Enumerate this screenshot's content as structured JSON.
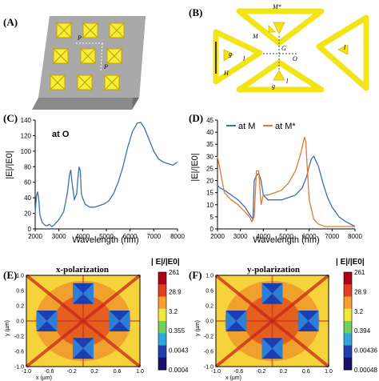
{
  "panels": {
    "A": "(A)",
    "B": "(B)",
    "C": "(C)",
    "D": "(D)",
    "E": "(E)",
    "F": "(F)"
  },
  "schematic_a": {
    "labels": [
      "P",
      "P"
    ]
  },
  "schematic_b": {
    "labels": [
      "M*",
      "M",
      "g",
      "l",
      "H",
      "G",
      "O",
      "l",
      "g",
      "l"
    ]
  },
  "chart_data": [
    {
      "type": "line",
      "ylabel": "|E|/|E0|",
      "xlabel": "Wavelength (nm)",
      "annotation": "at O",
      "xlim": [
        2000,
        8000
      ],
      "ylim": [
        0,
        140
      ],
      "xticks": [
        2000,
        3000,
        4000,
        5000,
        6000,
        7000,
        8000
      ],
      "yticks": [
        0,
        20,
        40,
        60,
        80,
        100,
        120,
        140
      ],
      "series": [
        {
          "color": "#3a6fb5",
          "x": [
            2000,
            2050,
            2100,
            2150,
            2200,
            2300,
            2400,
            2500,
            2600,
            2700,
            2800,
            3000,
            3200,
            3350,
            3450,
            3500,
            3550,
            3650,
            3750,
            3800,
            3850,
            3900,
            3950,
            4000,
            4100,
            4300,
            4500,
            4700,
            4900,
            5100,
            5300,
            5500,
            5700,
            5900,
            6100,
            6300,
            6450,
            6600,
            6800,
            7000,
            7200,
            7400,
            7600,
            7800,
            8000
          ],
          "y": [
            20,
            42,
            48,
            38,
            18,
            8,
            5,
            4,
            6,
            3,
            5,
            12,
            22,
            45,
            70,
            76,
            60,
            38,
            45,
            65,
            80,
            75,
            45,
            40,
            32,
            28,
            28,
            30,
            32,
            36,
            45,
            60,
            80,
            105,
            125,
            136,
            137,
            130,
            115,
            100,
            90,
            86,
            84,
            82,
            86
          ]
        }
      ]
    },
    {
      "type": "line",
      "ylabel": "|E|/|E0|",
      "xlabel": "Wavelength (nm)",
      "xlim": [
        2000,
        8000
      ],
      "ylim": [
        0,
        45
      ],
      "xticks": [
        2000,
        3000,
        4000,
        5000,
        6000,
        7000,
        8000
      ],
      "yticks": [
        0,
        5,
        10,
        15,
        20,
        25,
        30,
        35,
        40,
        45
      ],
      "legend": "top",
      "series": [
        {
          "name": "at M",
          "color": "#3a6fb5",
          "x": [
            2000,
            2100,
            2300,
            2600,
            2900,
            3200,
            3400,
            3550,
            3600,
            3700,
            3800,
            3900,
            4000,
            4200,
            4500,
            4800,
            5100,
            5400,
            5700,
            5900,
            6000,
            6100,
            6200,
            6400,
            6600,
            6800,
            7000,
            7300,
            7600,
            7800,
            8000
          ],
          "y": [
            18,
            17,
            16,
            14,
            12,
            9,
            6,
            4,
            20,
            22,
            23,
            20,
            14,
            12,
            12,
            12,
            13,
            14,
            17,
            22,
            26,
            29,
            30,
            26,
            19,
            13,
            9,
            5,
            3,
            2,
            1
          ]
        },
        {
          "name": "at M*",
          "color": "#e07a30",
          "x": [
            2000,
            2100,
            2300,
            2600,
            2900,
            3200,
            3400,
            3500,
            3600,
            3700,
            3800,
            3900,
            4000,
            4200,
            4500,
            4800,
            5100,
            5400,
            5600,
            5700,
            5800,
            5850,
            5900,
            6000,
            6200,
            6400,
            6700,
            7000,
            7300,
            7600,
            8000
          ],
          "y": [
            30,
            25,
            15,
            12,
            10,
            7,
            5,
            3,
            5,
            24,
            24,
            10,
            14,
            14,
            15,
            16,
            19,
            24,
            30,
            34,
            38,
            36,
            28,
            12,
            4,
            2,
            1,
            1,
            1,
            1,
            1
          ]
        }
      ]
    },
    {
      "type": "heatmap",
      "title": "x-polarization",
      "xlabel": "x (µm)",
      "ylabel": "y (µm)",
      "xticks": [
        "-1.0",
        "-0.6",
        "-0.2",
        "0.2",
        "0.6",
        "1.0"
      ],
      "yticks": [
        "1.0",
        "0.6",
        "0.2",
        "0.0",
        "-0.2",
        "-0.6",
        "-1.0"
      ],
      "colorbar_title": "| E|/|E0|",
      "colorbar_ticks": [
        "261",
        "28.9",
        "3.2",
        "0.355",
        "0.0043",
        "0.0004"
      ]
    },
    {
      "type": "heatmap",
      "title": "y-polarization",
      "xlabel": "x (µm)",
      "ylabel": "y (µm)",
      "xticks": [
        "-1.0",
        "-0.6",
        "-0.2",
        "0.2",
        "0.6",
        "1.0"
      ],
      "yticks": [
        "1.0",
        "0.6",
        "0.2",
        "0.0",
        "-0.2",
        "-0.6",
        "-1.0"
      ],
      "colorbar_title": "| E|/|E0|",
      "colorbar_ticks": [
        "261",
        "28.9",
        "3.2",
        "0.394",
        "0.00436",
        "0.00048"
      ]
    }
  ]
}
